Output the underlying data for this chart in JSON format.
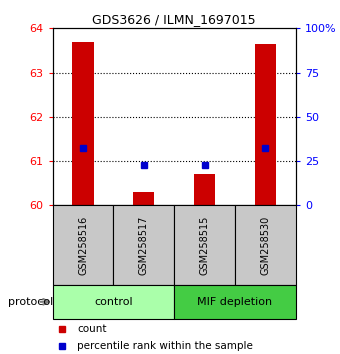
{
  "title": "GDS3626 / ILMN_1697015",
  "samples": [
    "GSM258516",
    "GSM258517",
    "GSM258515",
    "GSM258530"
  ],
  "groups": [
    {
      "name": "control",
      "color": "#AAFFAA",
      "samples": [
        0,
        1
      ]
    },
    {
      "name": "MIF depletion",
      "color": "#44CC44",
      "samples": [
        2,
        3
      ]
    }
  ],
  "red_bar_values": [
    63.7,
    60.3,
    60.7,
    63.65
  ],
  "blue_square_values": [
    61.3,
    60.9,
    60.9,
    61.3
  ],
  "ylim_left": [
    60,
    64
  ],
  "yticks_left": [
    60,
    61,
    62,
    63,
    64
  ],
  "ylim_right": [
    0,
    100
  ],
  "yticks_right": [
    0,
    25,
    50,
    75,
    100
  ],
  "ytick_labels_right": [
    "0",
    "25",
    "50",
    "75",
    "100%"
  ],
  "dotted_grid_values": [
    61,
    62,
    63
  ],
  "bar_color": "#CC0000",
  "square_color": "#0000CC",
  "sample_box_color": "#C8C8C8",
  "protocol_label": "protocol",
  "legend_count_label": "count",
  "legend_percentile_label": "percentile rank within the sample"
}
